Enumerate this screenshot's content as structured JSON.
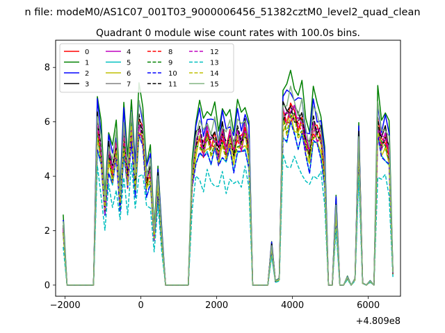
{
  "figure": {
    "suptitle": "n file: modeM0/AS1C07_001T03_9000006456_51382cztM0_level2_quad_clean"
  },
  "chart_data": {
    "type": "line",
    "title": "Quadrant 0 module wise count rates with 100.0s bins.",
    "xlabel": "",
    "ylabel": "",
    "x_offset_label": "+4.809e8",
    "xlim": [
      -2250,
      6850
    ],
    "ylim": [
      -0.41,
      9.0
    ],
    "xticks": [
      -2000,
      0,
      2000,
      4000,
      6000
    ],
    "yticks": [
      0,
      2,
      4,
      6,
      8
    ],
    "grid": false,
    "legend_placement": "top-left",
    "legend_columns": 4,
    "x": [
      -2050,
      -1950,
      -1850,
      -1750,
      -1650,
      -1550,
      -1450,
      -1350,
      -1250,
      -1150,
      -1050,
      -950,
      -850,
      -750,
      -650,
      -550,
      -450,
      -350,
      -250,
      -150,
      -50,
      50,
      150,
      250,
      350,
      450,
      550,
      650,
      750,
      850,
      950,
      1050,
      1150,
      1250,
      1350,
      1450,
      1550,
      1650,
      1750,
      1850,
      1950,
      2050,
      2150,
      2250,
      2350,
      2450,
      2550,
      2650,
      2750,
      2850,
      2950,
      3050,
      3150,
      3250,
      3350,
      3450,
      3550,
      3650,
      3750,
      3850,
      3950,
      4050,
      4150,
      4250,
      4350,
      4450,
      4550,
      4650,
      4750,
      4850,
      4950,
      5050,
      5150,
      5250,
      5350,
      5450,
      5550,
      5650,
      5750,
      5850,
      5950,
      6050,
      6150,
      6250,
      6350,
      6450,
      6550,
      6650
    ],
    "profile": [
      0.3,
      0,
      0,
      0,
      0,
      0,
      0,
      0,
      0,
      0.85,
      0.7,
      0.4,
      0.7,
      0.6,
      0.72,
      0.45,
      0.8,
      0.55,
      0.85,
      0.55,
      0.86,
      0.8,
      0.55,
      0.6,
      0.25,
      0.55,
      0.25,
      0,
      0,
      0,
      0,
      0,
      0,
      0,
      0.55,
      0.75,
      0.8,
      0.72,
      0.8,
      0.75,
      0.78,
      0.7,
      0.8,
      0.72,
      0.78,
      0.7,
      0.8,
      0.75,
      0.82,
      0.72,
      0,
      0,
      0,
      0,
      0,
      0.2,
      0.02,
      0.03,
      0.9,
      0.88,
      0.92,
      0.9,
      0.85,
      0.87,
      0.75,
      0.7,
      0.85,
      0.8,
      0.78,
      0.6,
      0,
      0,
      0.4,
      0,
      0,
      0.04,
      0,
      0.03,
      0.75,
      0.01,
      0,
      0.02,
      0,
      0.85,
      0.75,
      0.78,
      0.7,
      0.06
    ],
    "series": [
      {
        "name": "0",
        "color": "#ff0000",
        "dash": "solid",
        "level": 7.0
      },
      {
        "name": "1",
        "color": "#008000",
        "dash": "solid",
        "level": 8.3
      },
      {
        "name": "2",
        "color": "#0000ff",
        "dash": "solid",
        "level": 7.8
      },
      {
        "name": "3",
        "color": "#000000",
        "dash": "solid",
        "level": 7.2
      },
      {
        "name": "4",
        "color": "#bf00bf",
        "dash": "solid",
        "level": 7.0
      },
      {
        "name": "5",
        "color": "#00bfbf",
        "dash": "solid",
        "level": 6.2
      },
      {
        "name": "6",
        "color": "#bfbf00",
        "dash": "solid",
        "level": 6.6
      },
      {
        "name": "7",
        "color": "#808080",
        "dash": "solid",
        "level": 6.9
      },
      {
        "name": "8",
        "color": "#ff0000",
        "dash": "dashed",
        "level": 6.8
      },
      {
        "name": "9",
        "color": "#008000",
        "dash": "dashed",
        "level": 6.7
      },
      {
        "name": "10",
        "color": "#0000ff",
        "dash": "dashed",
        "level": 6.2
      },
      {
        "name": "11",
        "color": "#000000",
        "dash": "dashed",
        "level": 7.0
      },
      {
        "name": "12",
        "color": "#bf00bf",
        "dash": "dashed",
        "level": 6.9
      },
      {
        "name": "13",
        "color": "#00bfbf",
        "dash": "dashed",
        "level": 5.0
      },
      {
        "name": "14",
        "color": "#bfbf00",
        "dash": "dashed",
        "level": 6.6
      },
      {
        "name": "15",
        "color": "#80b380",
        "dash": "solid",
        "level": 7.6
      }
    ]
  }
}
